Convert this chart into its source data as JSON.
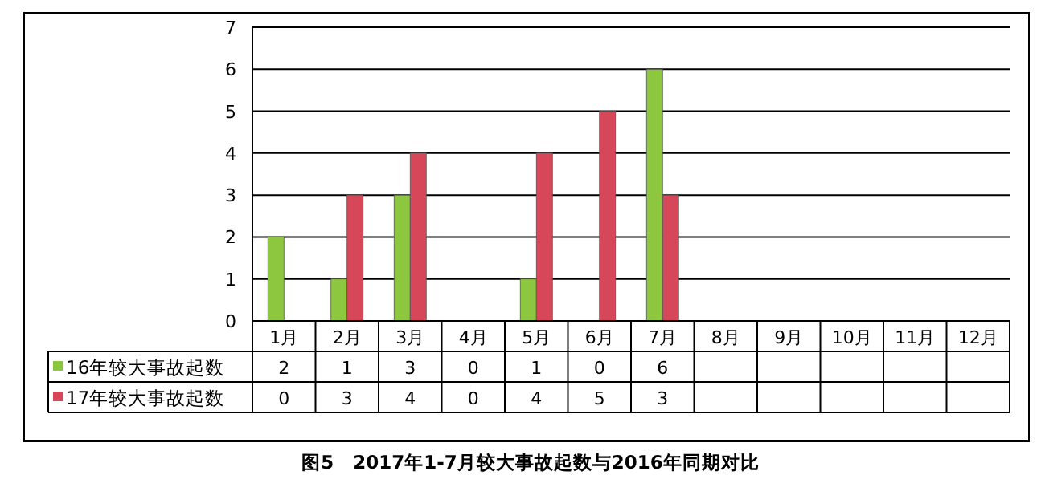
{
  "chart_data": {
    "type": "bar",
    "title": "图5　2017年1-7月较大事故起数与2016年同期对比",
    "categories": [
      "1月",
      "2月",
      "3月",
      "4月",
      "5月",
      "6月",
      "7月",
      "8月",
      "9月",
      "10月",
      "11月",
      "12月"
    ],
    "series": [
      {
        "name": "16年较大事故起数",
        "color": "#8dc63f",
        "values": [
          2,
          1,
          3,
          0,
          1,
          0,
          6,
          null,
          null,
          null,
          null,
          null
        ]
      },
      {
        "name": "17年较大事故起数",
        "color": "#d6475a",
        "values": [
          0,
          3,
          4,
          0,
          4,
          5,
          3,
          null,
          null,
          null,
          null,
          null
        ]
      }
    ],
    "ylim": [
      0,
      7
    ],
    "yticks": [
      0,
      1,
      2,
      3,
      4,
      5,
      6,
      7
    ],
    "grid": "y",
    "legend": "bottom",
    "data_labels": true
  }
}
